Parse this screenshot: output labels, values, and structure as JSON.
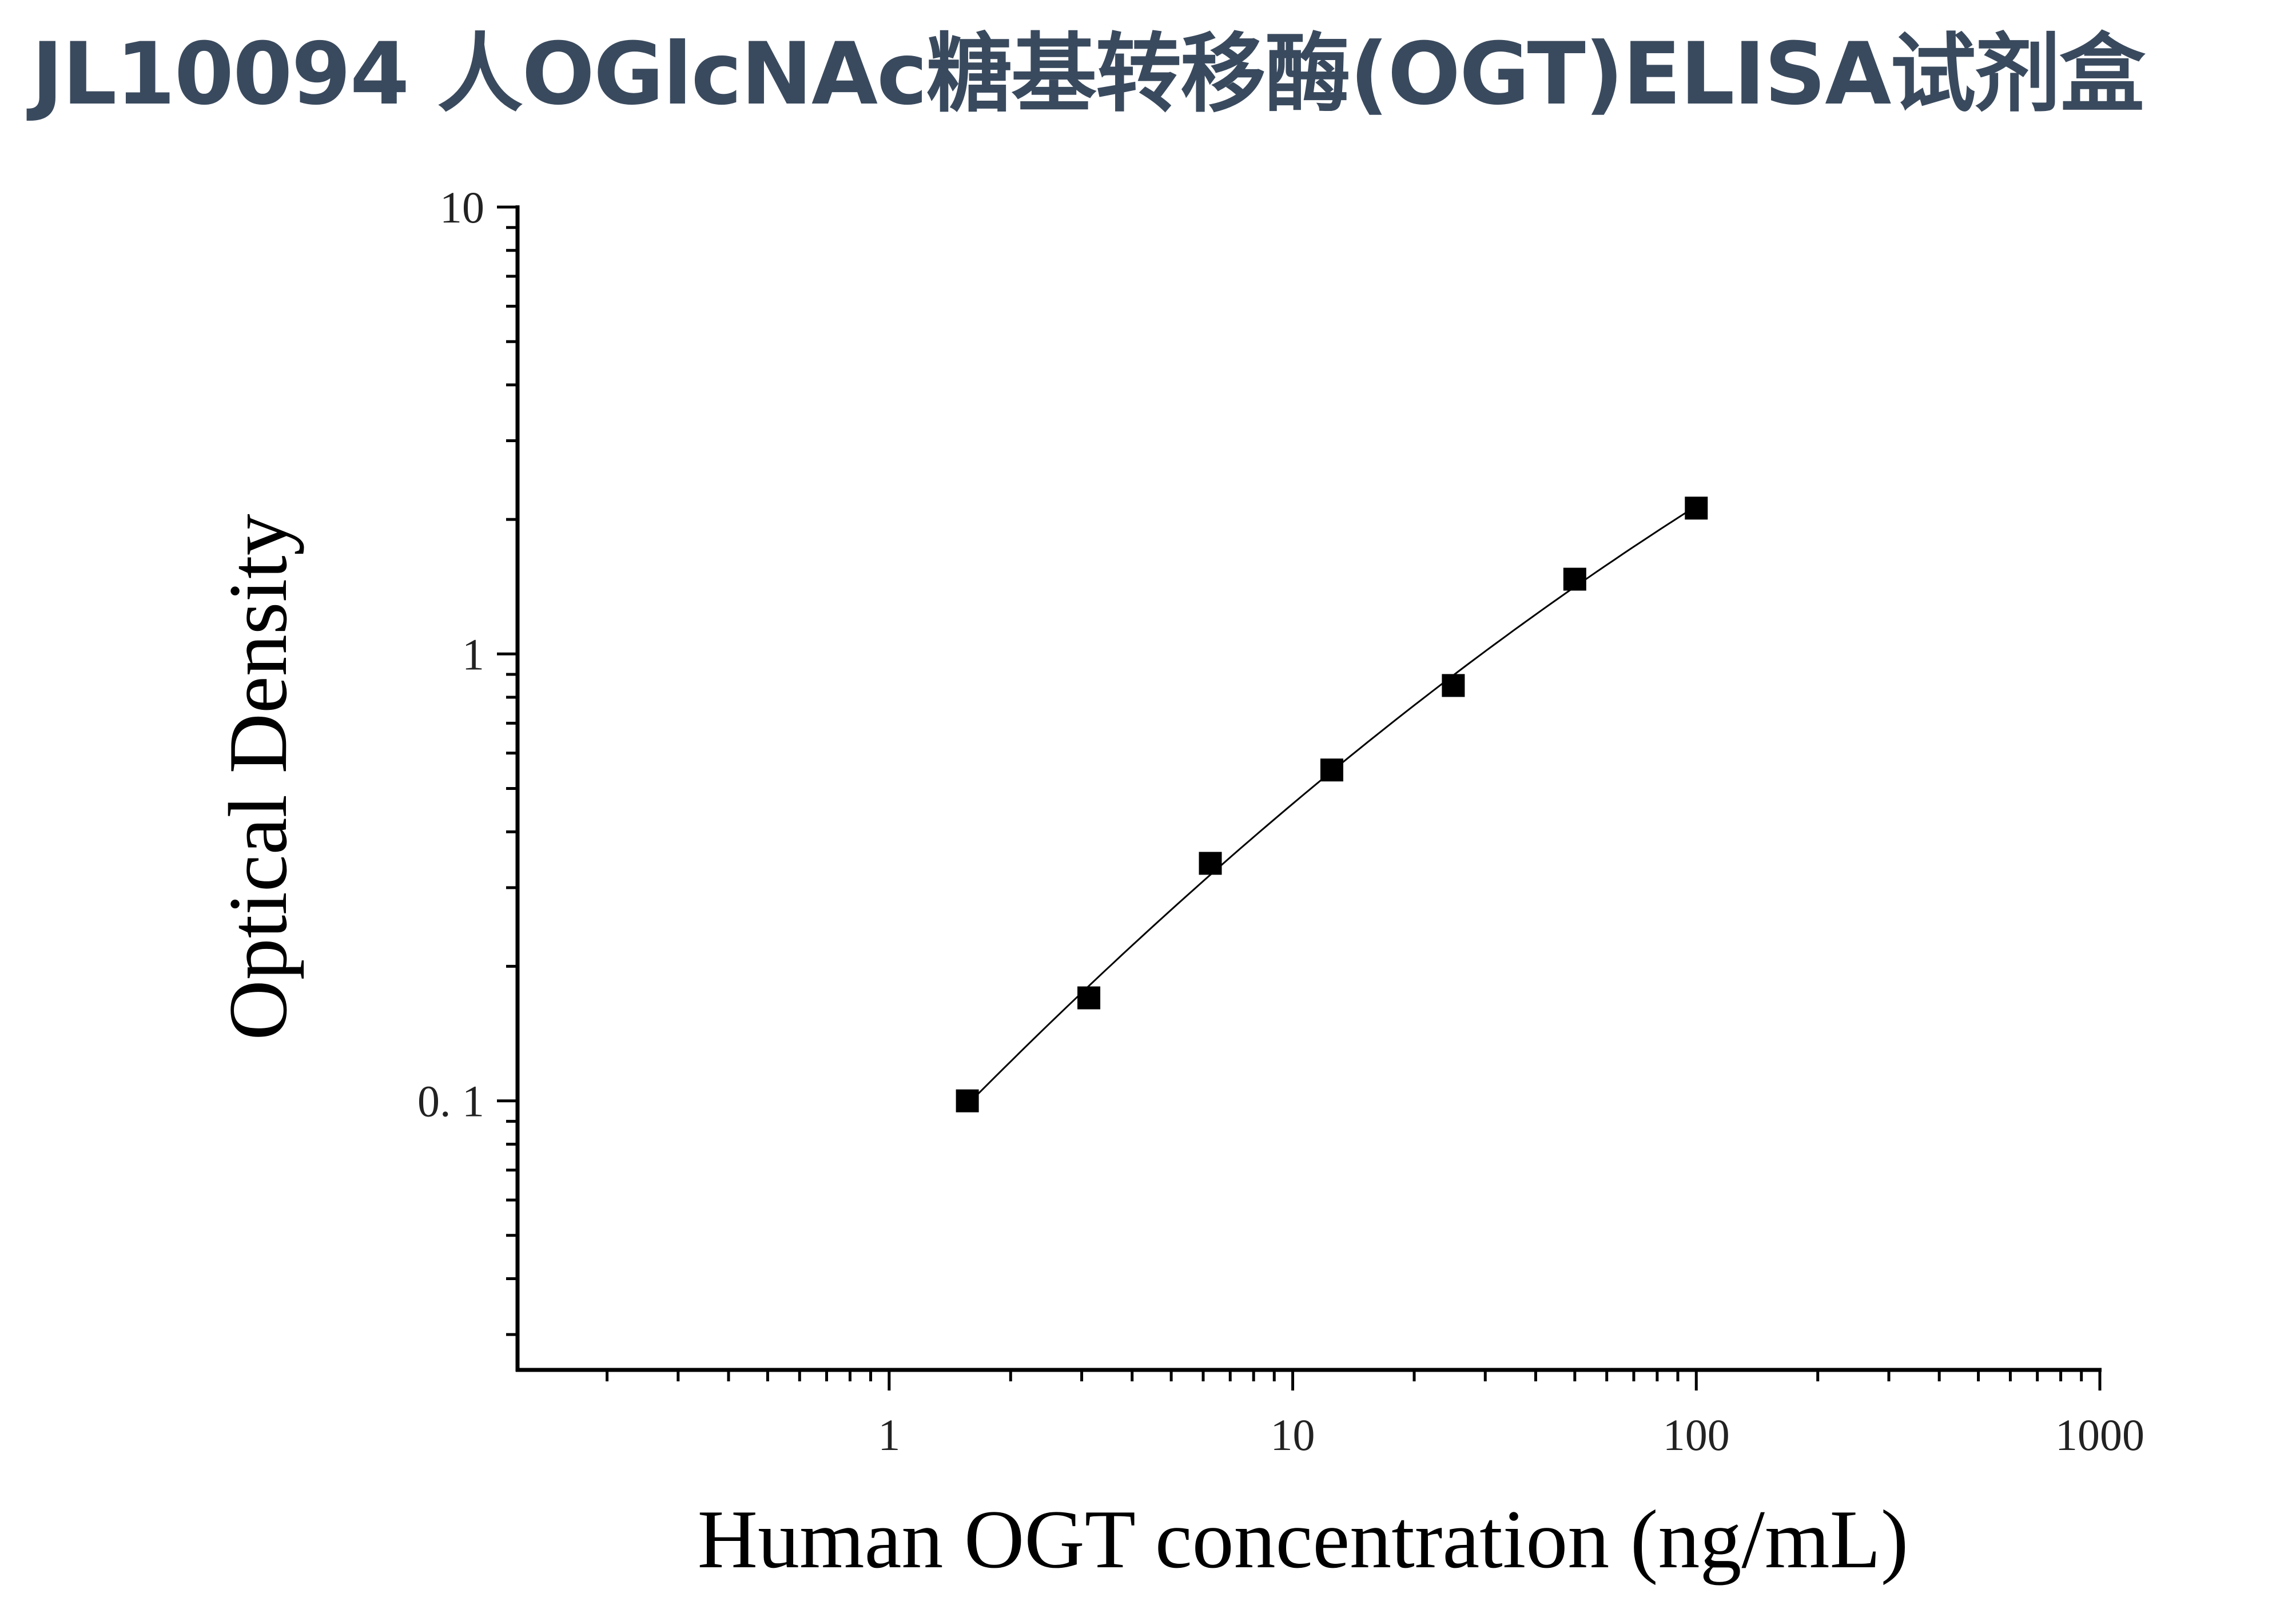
{
  "title": "JL10094 人OGlcNAc糖基转移酶(OGT)ELISA试剂盒",
  "chart_data": {
    "type": "scatter",
    "xlabel": "Human OGT concentration (ng/mL)",
    "ylabel": "Optical Density",
    "x_scale": "log",
    "y_scale": "log",
    "xlim": [
      0.12,
      1000
    ],
    "ylim": [
      0.025,
      10
    ],
    "x_tick_labels": [
      "1",
      "10",
      "100",
      "1000"
    ],
    "y_tick_labels": [
      "0. 1",
      "1",
      "10"
    ],
    "grid": false,
    "x": [
      1.5625,
      3.125,
      6.25,
      12.5,
      25,
      50,
      100
    ],
    "y": [
      0.1,
      0.17,
      0.34,
      0.55,
      0.85,
      1.47,
      2.12
    ],
    "marker": "square",
    "fit_curve": true,
    "colors": {
      "marker": "#000000",
      "axis": "#000000",
      "title": "#3a4a5e"
    }
  }
}
